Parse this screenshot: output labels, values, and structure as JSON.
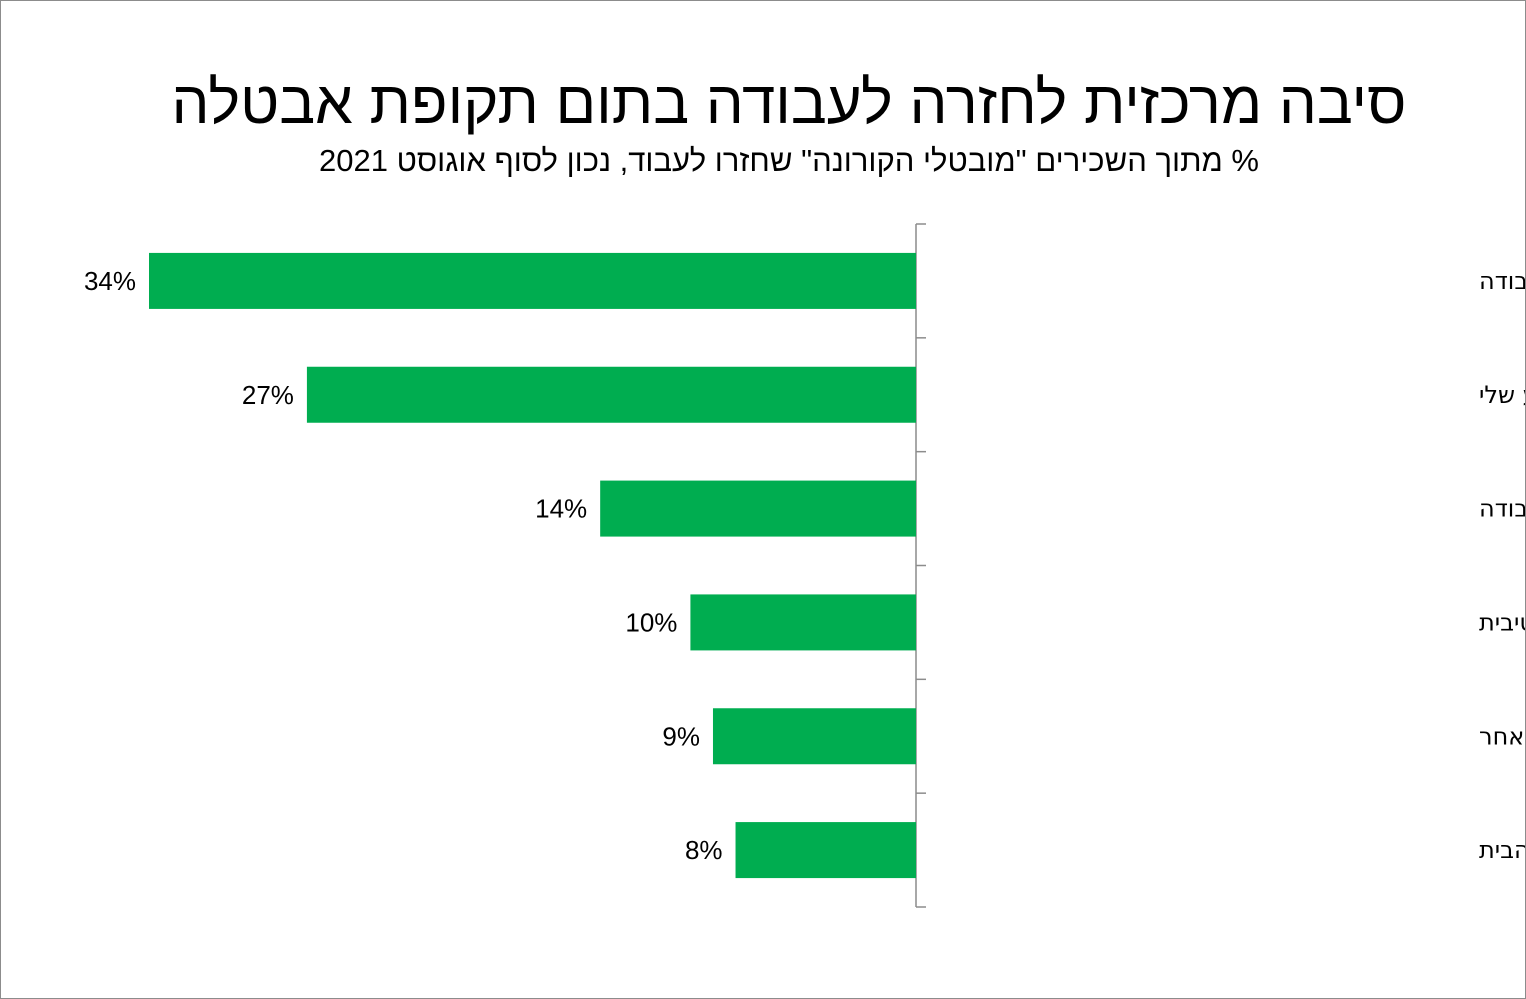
{
  "chart_data": {
    "type": "bar",
    "orientation": "horizontal",
    "title": "סיבה מרכזית לחזרה לעבודה בתום תקופת אבטלה",
    "subtitle": "% מתוך השכירים \"מובטלי הקורונה\" שחזרו לעבוד, נכון לסוף אוגוסט 2021",
    "categories": [
      "המעסיק הקודם/נוכחי ביקש שאחזור לעבודה",
      "רציתי לחזור לעבוד במקצוע שלי",
      "הפסקת הזכאות לחל\"ת גרמה לי לחפש מקום עבודה",
      "קיבלתי הצעת עבודה אטרקטיבית",
      "אחר",
      "שעמום / רציתי לצאת מהבית"
    ],
    "values": [
      34,
      27,
      14,
      10,
      9,
      8
    ],
    "value_labels": [
      "34%",
      "27%",
      "14%",
      "10%",
      "9%",
      "8%"
    ],
    "unit": "%",
    "xlim": [
      0,
      34
    ],
    "grid": false,
    "legend": "none",
    "bar_color": "#00AD50",
    "axis_color": "#8c8c8c"
  }
}
